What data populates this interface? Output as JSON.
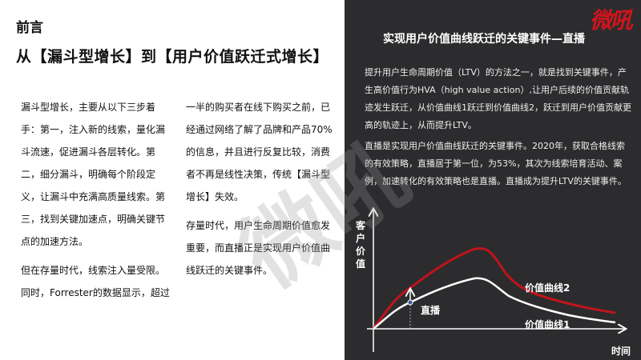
{
  "left": {
    "heading": "前言",
    "subheading": "从【漏斗型增长】到【用户价值跃迁式增长】",
    "col1": [
      "漏斗型增长，主要从以下三步着手：第一，注入新的线索，量化漏斗流速，促进漏斗各层转化。第二，细分漏斗，明确每个阶段定义，让漏斗中充满高质量线索。第三，找到关键加速点，明确关键节点的加速方法。",
      "但在存量时代，线索注入量受限。同时，Forrester的数据显示，超过"
    ],
    "col2": [
      "一半的购买者在线下购买之前，已经通过网络了解了品牌和产品70%的信息，并且进行反复比较，消费者不再是线性决策，传统【漏斗型增长】失效。",
      "存量时代，用户生命周期价值愈发重要，而直播正是实现用户价值曲线跃迁的关键事件。"
    ]
  },
  "right": {
    "logo": "微吼",
    "title": "实现用户价值曲线跃迁的关键事件—直播",
    "para1": "提升用户生命周期价值（LTV）的方法之一，就是找到关键事件，产生高价值行为HVA（high value action）,让用户后续的价值贡献轨迹发生跃迁，从价值曲线1跃迁到价值曲线2，跃迁到用户价值贡献更高的轨迹上，从而提升LTV。",
    "para2": "直播是实现用户价值曲线跃迁的关键事件。2020年，获取合格线索的有效策略，直播居于第一位，为53%，其次为线索培育活动、案例，加速转化的有效策略也是直播。直播成为提升LTV的关键事件。"
  },
  "diagram": {
    "y_label": [
      "客",
      "户",
      "价",
      "值"
    ],
    "x_label": "时间",
    "curve2_label": "价值曲线2",
    "curve1_label": "价值曲线1",
    "event_label": "直播",
    "colors": {
      "curve2": "#c0141b",
      "curve1": "#ffffff"
    }
  },
  "watermark": "微吼"
}
